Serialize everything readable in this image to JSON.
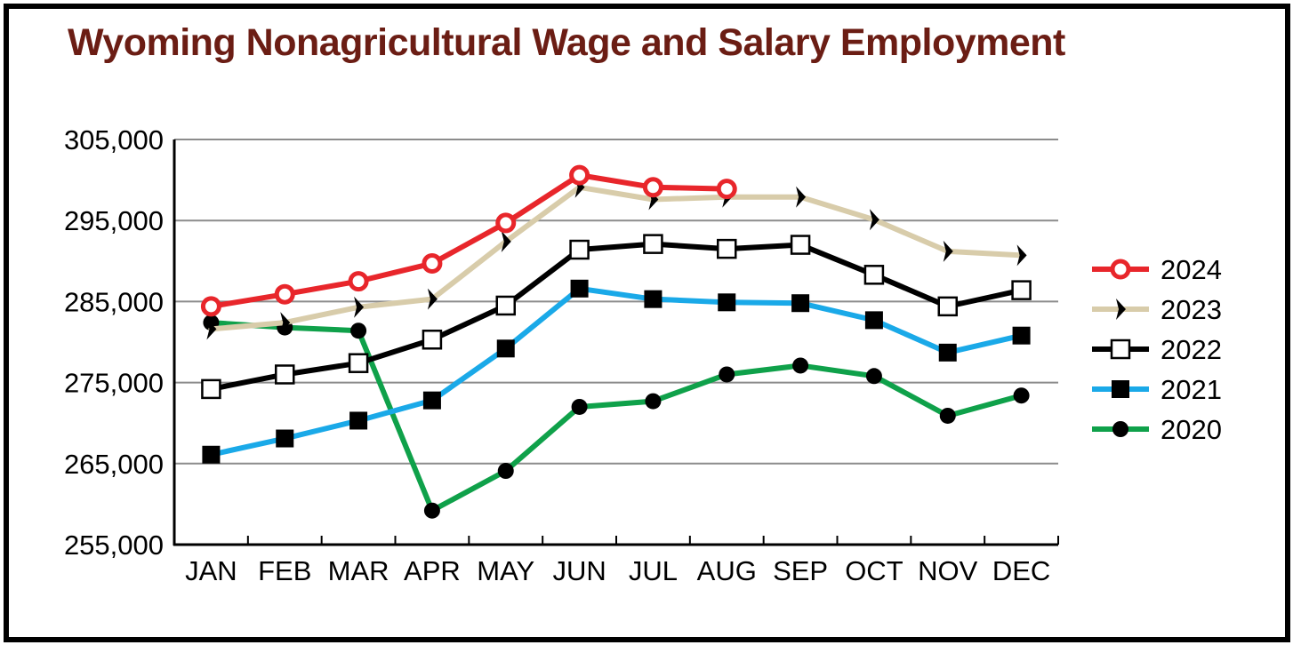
{
  "chart_data": {
    "type": "line",
    "title": "Wyoming Nonagricultural Wage and Salary Employment",
    "xlabel": "",
    "ylabel": "",
    "categories": [
      "JAN",
      "FEB",
      "MAR",
      "APR",
      "MAY",
      "JUN",
      "JUL",
      "AUG",
      "SEP",
      "OCT",
      "NOV",
      "DEC"
    ],
    "ylim": [
      255000,
      305000
    ],
    "yticks": [
      255000,
      265000,
      275000,
      285000,
      295000,
      305000
    ],
    "ytick_labels": [
      "255,000",
      "265,000",
      "275,000",
      "285,000",
      "295,000",
      "305,000"
    ],
    "grid": true,
    "legend_position": "right",
    "series": [
      {
        "name": "2024",
        "color": "#e8262b",
        "marker": "open-circle",
        "values": [
          284400,
          285900,
          287500,
          289700,
          294700,
          300600,
          299100,
          298900,
          null,
          null,
          null,
          null
        ]
      },
      {
        "name": "2023",
        "color": "#d8ccaa",
        "marker": "chevron",
        "values": [
          281600,
          282400,
          284300,
          285300,
          292400,
          299100,
          297600,
          297900,
          297900,
          295100,
          291200,
          290700
        ]
      },
      {
        "name": "2022",
        "color": "#000000",
        "marker": "open-square",
        "values": [
          274200,
          276000,
          277400,
          280300,
          284500,
          291400,
          292100,
          291500,
          292000,
          288300,
          284400,
          286400
        ]
      },
      {
        "name": "2021",
        "color": "#1aa9e8",
        "marker": "filled-square",
        "values": [
          266100,
          268100,
          270300,
          272800,
          279200,
          286600,
          285300,
          284900,
          284800,
          282700,
          278700,
          280800
        ]
      },
      {
        "name": "2020",
        "color": "#0fa14a",
        "marker": "filled-circle",
        "values": [
          282400,
          281800,
          281400,
          259200,
          264100,
          272000,
          272700,
          276000,
          277100,
          275800,
          270900,
          273400
        ]
      }
    ]
  }
}
